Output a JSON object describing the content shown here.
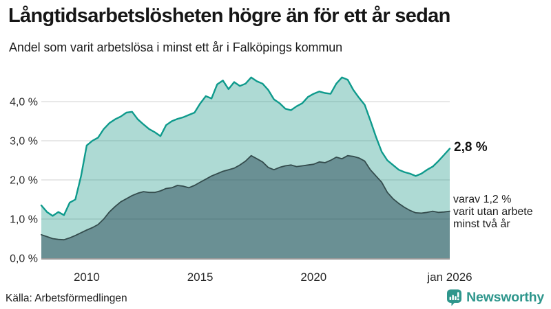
{
  "header": {
    "title": "Långtidsarbetslösheten högre än för ett år sedan",
    "subtitle": "Andel som varit arbetslösa i minst ett år i Falköpings kommun"
  },
  "annotations": {
    "latest_total": "2,8 %",
    "secondary": "varav 1,2 %\nvarit utan arbete\nminst två år"
  },
  "source": "Källa: Arbetsförmedlingen",
  "branding": {
    "name": "Newsworthy",
    "color": "#2E968C",
    "logo_icon": "bar-chart-speech-bubble-icon"
  },
  "colors": {
    "series1_line": "#0E9A8C",
    "series1_fill": "rgba(42,157,143,0.38)",
    "series2_line": "#344C4D",
    "series2_fill": "rgba(38,70,83,0.50)",
    "gridline": "#D9D9D9",
    "baseline": "#999999",
    "tick_text": "#2A2A2A"
  },
  "chart_data": {
    "type": "area",
    "title": "Långtidsarbetslösheten högre än för ett år sedan",
    "subtitle": "Andel som varit arbetslösa i minst ett år i Falköpings kommun",
    "grid": "horizontal",
    "legend": "none",
    "unit": "%",
    "x_axis": {
      "range": [
        2008,
        2026
      ],
      "ticks": [
        {
          "value": 2010,
          "label": "2010"
        },
        {
          "value": 2015,
          "label": "2015"
        },
        {
          "value": 2020,
          "label": "2020"
        },
        {
          "value": 2026,
          "label": "jan 2026"
        }
      ]
    },
    "y_axis": {
      "range": [
        0,
        4.8
      ],
      "ticks": [
        {
          "value": 0,
          "label": "0,0 %"
        },
        {
          "value": 1,
          "label": "1,0 %"
        },
        {
          "value": 2,
          "label": "2,0 %"
        },
        {
          "value": 3,
          "label": "3,0 %"
        },
        {
          "value": 4,
          "label": "4,0 %"
        }
      ]
    },
    "x": [
      2008,
      2008.25,
      2008.5,
      2008.75,
      2009,
      2009.25,
      2009.5,
      2009.75,
      2010,
      2010.25,
      2010.5,
      2010.75,
      2011,
      2011.25,
      2011.5,
      2011.75,
      2012,
      2012.25,
      2012.5,
      2012.75,
      2013,
      2013.25,
      2013.5,
      2013.75,
      2014,
      2014.25,
      2014.5,
      2014.75,
      2015,
      2015.25,
      2015.5,
      2015.75,
      2016,
      2016.25,
      2016.5,
      2016.75,
      2017,
      2017.25,
      2017.5,
      2017.75,
      2018,
      2018.25,
      2018.5,
      2018.75,
      2019,
      2019.25,
      2019.5,
      2019.75,
      2020,
      2020.25,
      2020.5,
      2020.75,
      2021,
      2021.25,
      2021.5,
      2021.75,
      2022,
      2022.25,
      2022.5,
      2022.75,
      2023,
      2023.25,
      2023.5,
      2023.75,
      2024,
      2024.25,
      2024.5,
      2024.75,
      2025,
      2025.25,
      2025.5,
      2025.75,
      2026
    ],
    "series": [
      {
        "name": "Arbetslösa minst ett år",
        "end_label": "2,8 %",
        "end_value": 2.8,
        "values": [
          1.35,
          1.18,
          1.08,
          1.18,
          1.1,
          1.42,
          1.5,
          2.1,
          2.88,
          3.0,
          3.08,
          3.3,
          3.45,
          3.55,
          3.62,
          3.72,
          3.74,
          3.55,
          3.42,
          3.3,
          3.22,
          3.12,
          3.4,
          3.5,
          3.56,
          3.6,
          3.66,
          3.72,
          3.95,
          4.14,
          4.08,
          4.44,
          4.54,
          4.32,
          4.5,
          4.4,
          4.46,
          4.62,
          4.52,
          4.46,
          4.3,
          4.06,
          3.96,
          3.82,
          3.78,
          3.88,
          3.96,
          4.12,
          4.2,
          4.26,
          4.22,
          4.2,
          4.46,
          4.62,
          4.56,
          4.3,
          4.1,
          3.92,
          3.52,
          3.1,
          2.72,
          2.5,
          2.38,
          2.26,
          2.2,
          2.16,
          2.1,
          2.16,
          2.26,
          2.34,
          2.48,
          2.64,
          2.8
        ]
      },
      {
        "name": "Arbetslösa minst två år",
        "end_label": "varav 1,2 %",
        "end_value": 1.2,
        "values": [
          0.6,
          0.55,
          0.5,
          0.48,
          0.47,
          0.52,
          0.58,
          0.65,
          0.72,
          0.78,
          0.86,
          1.0,
          1.18,
          1.32,
          1.44,
          1.52,
          1.6,
          1.66,
          1.7,
          1.68,
          1.68,
          1.72,
          1.78,
          1.8,
          1.86,
          1.84,
          1.8,
          1.86,
          1.94,
          2.02,
          2.1,
          2.16,
          2.22,
          2.26,
          2.3,
          2.38,
          2.48,
          2.62,
          2.54,
          2.46,
          2.32,
          2.26,
          2.32,
          2.36,
          2.38,
          2.34,
          2.36,
          2.38,
          2.4,
          2.46,
          2.44,
          2.5,
          2.58,
          2.54,
          2.62,
          2.6,
          2.56,
          2.48,
          2.26,
          2.1,
          1.94,
          1.68,
          1.52,
          1.4,
          1.3,
          1.22,
          1.16,
          1.15,
          1.17,
          1.2,
          1.17,
          1.18,
          1.2
        ]
      }
    ]
  }
}
